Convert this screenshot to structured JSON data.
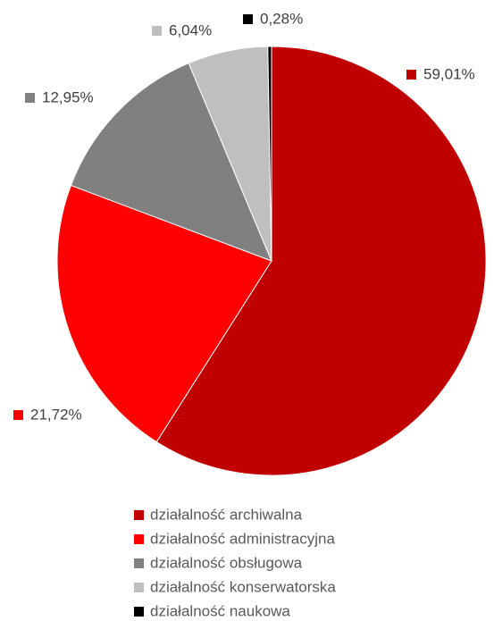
{
  "chart_data": {
    "type": "pie",
    "categories": [
      "działalność archiwalna",
      "działalność administracyjna",
      "działalność obsługowa",
      "działalność konserwatorska",
      "działalność naukowa"
    ],
    "values": [
      59.01,
      21.72,
      12.95,
      6.04,
      0.28
    ],
    "value_labels": [
      "59,01%",
      "21,72%",
      "12,95%",
      "6,04%",
      "0,28%"
    ],
    "colors": [
      "#c00000",
      "#ff0000",
      "#808080",
      "#bfbfbf",
      "#000000"
    ],
    "legend": "bottom"
  }
}
